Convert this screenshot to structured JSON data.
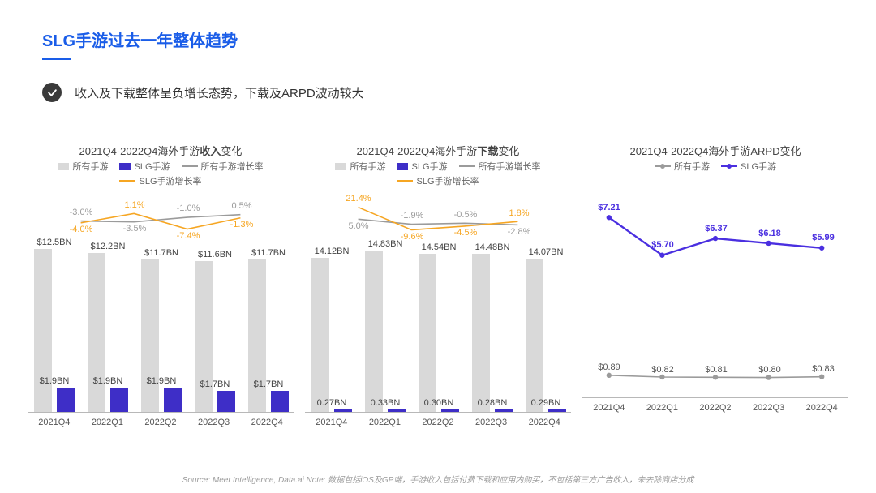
{
  "title": "SLG手游过去一年整体趋势",
  "bullet": "收入及下载整体呈负增长态势，下载及ARPD波动较大",
  "footer": "Source: Meet Intelligence, Data.ai Note: 数据包括iOS及GP端，手游收入包括付费下载和应用内购买，不包括第三方广告收入，未去除商店分成",
  "colors": {
    "title": "#1a5de8",
    "bullet_icon_bg": "#3a3a3a",
    "axis": "#b8b8b8",
    "text": "#444444",
    "all_bar": "#d9d9d9",
    "slg_bar": "#3e2ec7",
    "all_line": "#9b9b9b",
    "slg_line": "#f6a623",
    "arpd_all_line": "#9b9b9b",
    "arpd_slg_line": "#4a2fe0"
  },
  "categories": [
    "2021Q4",
    "2022Q1",
    "2022Q2",
    "2022Q3",
    "2022Q4"
  ],
  "chart1": {
    "title_pre": "2021Q4-2022Q4海外手游",
    "title_bold": "收入",
    "title_post": "变化",
    "legend": {
      "all_bar": "所有手游",
      "slg_bar": "SLG手游",
      "all_line": "所有手游增长率",
      "slg_line": "SLG手游增长率"
    },
    "bars_all": {
      "values": [
        12.5,
        12.2,
        11.7,
        11.6,
        11.7
      ],
      "labels": [
        "$12.5BN",
        "$12.2BN",
        "$11.7BN",
        "$11.6BN",
        "$11.7BN"
      ]
    },
    "bars_slg": {
      "values": [
        1.9,
        1.9,
        1.9,
        1.7,
        1.7
      ],
      "labels": [
        "$1.9BN",
        "$1.9BN",
        "$1.9BN",
        "$1.7BN",
        "$1.7BN"
      ]
    },
    "bar_ymax": 15.5,
    "line_all": {
      "values": [
        -3.0,
        -3.5,
        -1.0,
        0.5,
        null
      ],
      "labels": [
        "-3.0%",
        "-3.5%",
        "-1.0%",
        "0.5%",
        ""
      ]
    },
    "line_slg": {
      "values": [
        -4.0,
        1.1,
        -7.4,
        -1.3,
        null
      ],
      "labels": [
        "-4.0%",
        "1.1%",
        "-7.4%",
        "-1.3%",
        ""
      ]
    },
    "line_ymin": -22,
    "line_ymax": 8
  },
  "chart2": {
    "title_pre": "2021Q4-2022Q4海外手游",
    "title_bold": "下载",
    "title_post": "变化",
    "legend": {
      "all_bar": "所有手游",
      "slg_bar": "SLG手游",
      "all_line": "所有手游增长率",
      "slg_line": "SLG手游增长率"
    },
    "bars_all": {
      "values": [
        14.12,
        14.83,
        14.54,
        14.48,
        14.07
      ],
      "labels": [
        "14.12BN",
        "14.83BN",
        "14.54BN",
        "14.48BN",
        "14.07BN"
      ]
    },
    "bars_slg": {
      "values": [
        0.27,
        0.33,
        0.3,
        0.28,
        0.29
      ],
      "labels": [
        "0.27BN",
        "0.33BN",
        "0.30BN",
        "0.28BN",
        "0.29BN"
      ]
    },
    "bar_ymax": 18.5,
    "line_all": {
      "values": [
        5.0,
        -1.9,
        -0.5,
        -2.8,
        null
      ],
      "labels": [
        "5.0%",
        "-1.9%",
        "-0.5%",
        "-2.8%",
        ""
      ]
    },
    "line_slg": {
      "values": [
        21.4,
        -9.6,
        -4.5,
        1.8,
        null
      ],
      "labels": [
        "21.4%",
        "-9.6%",
        "-4.5%",
        "1.8%",
        ""
      ]
    },
    "line_ymin": -45,
    "line_ymax": 30
  },
  "chart3": {
    "title": "2021Q4-2022Q4海外手游ARPD变化",
    "legend": {
      "all": "所有手游",
      "slg": "SLG手游"
    },
    "line_all": {
      "values": [
        0.89,
        0.82,
        0.81,
        0.8,
        0.83
      ],
      "labels": [
        "$0.89",
        "$0.82",
        "$0.81",
        "$0.80",
        "$0.83"
      ]
    },
    "line_slg": {
      "values": [
        7.21,
        5.7,
        6.37,
        6.18,
        5.99
      ],
      "labels": [
        "$7.21",
        "$5.70",
        "$6.37",
        "$6.18",
        "$5.99"
      ]
    },
    "ymin": 0,
    "ymax": 8.2
  }
}
